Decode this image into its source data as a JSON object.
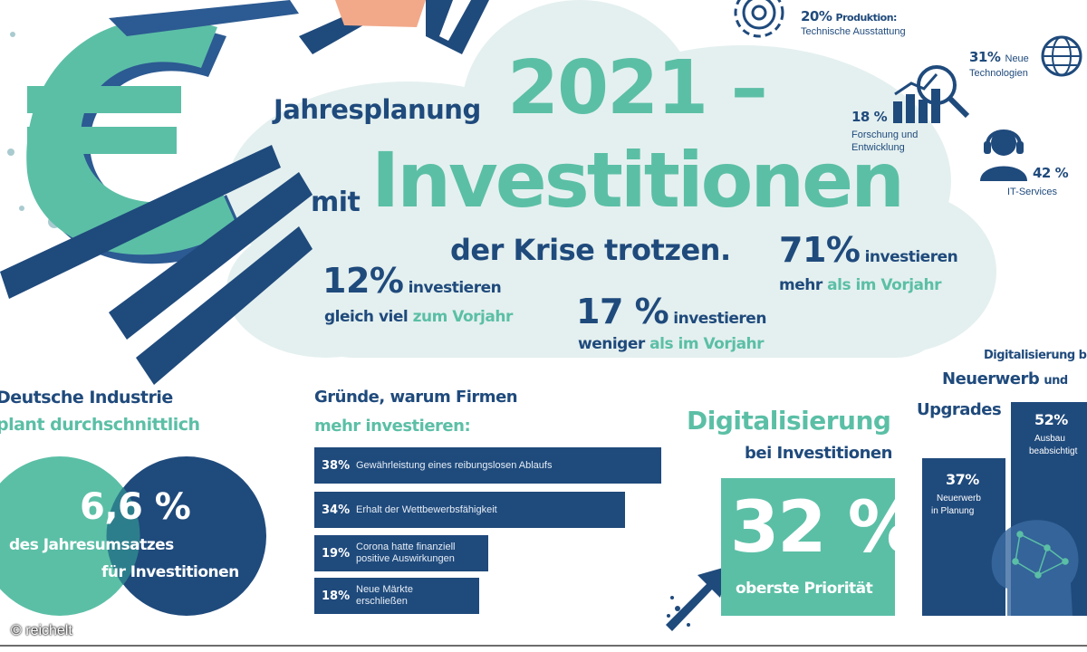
{
  "header": {
    "title_line1": "Jahresplanung",
    "title_year": "2021 –",
    "title_mit": "mit",
    "title_main": "Investitionen",
    "title_sub": "der Krise trotzen."
  },
  "stats": {
    "s12": {
      "pct": "12%",
      "word": "investieren",
      "line2a": "gleich viel",
      "line2b": "zum Vorjahr"
    },
    "s17": {
      "pct": "17 %",
      "word": "investieren",
      "line2a": "weniger",
      "line2b": "als im Vorjahr"
    },
    "s71": {
      "pct": "71%",
      "word": "investieren",
      "line2a": "mehr",
      "line2b": "als im Vorjahr"
    }
  },
  "areas": {
    "produktion": {
      "pct": "20%",
      "label_bold": "Produktion:",
      "label": "Technische Ausstattung"
    },
    "technologien": {
      "pct": "31%",
      "label_bold": "Neue",
      "label": "Technologien"
    },
    "forschung": {
      "pct": "18 %",
      "label": "Forschung und",
      "label2": "Entwicklung"
    },
    "it": {
      "pct": "42 %",
      "label": "IT-Services"
    }
  },
  "industry": {
    "heading1": "Deutsche Industrie",
    "heading2": "plant durchschnittlich",
    "value": "6,6 %",
    "line1": "des Jahresumsatzes",
    "line2": "für Investitionen"
  },
  "reasons": {
    "heading1": "Gründe, warum Firmen",
    "heading2": "mehr investieren:",
    "items": [
      {
        "pct": "38%",
        "label": "Gewährleistung eines reibungslosen Ablaufs",
        "value": 38
      },
      {
        "pct": "34%",
        "label": "Erhalt der Wettbewerbsfähigkeit",
        "value": 34
      },
      {
        "pct": "19%",
        "label": "Corona hatte finanziell",
        "label2": "positive Auswirkungen",
        "value": 19
      },
      {
        "pct": "18%",
        "label": "Neue Märkte",
        "label2": "erschließen",
        "value": 18
      }
    ]
  },
  "digital": {
    "heading1": "Digitalisierung",
    "heading2": "bei Investitionen",
    "value": "32 %",
    "caption": "oberste Priorität"
  },
  "upgrades": {
    "heading1": "Digitalisierung bei",
    "heading2": "Neuerwerb",
    "heading2b": "und",
    "heading3": "Upgrades",
    "neuerwerb": {
      "pct": "37%",
      "label": "Neuerwerb",
      "label2": "in Planung"
    },
    "ausbau": {
      "pct": "52%",
      "label": "Ausbau",
      "label2": "beabsichtigt"
    }
  },
  "copyright": "© reichelt",
  "colors": {
    "navy": "#1f4a7c",
    "teal": "#5bbfa6",
    "cloud": "#e4f0ef"
  }
}
